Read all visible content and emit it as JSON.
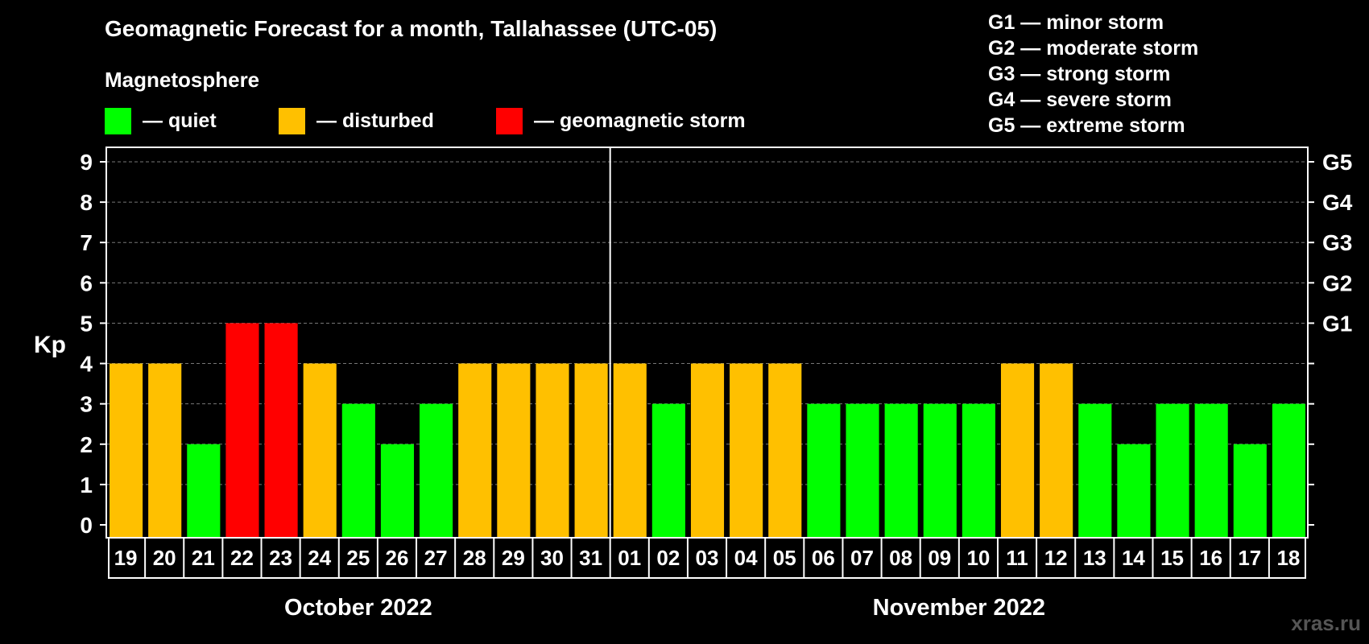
{
  "legend": {
    "heading": "Magnetosphere",
    "items": [
      {
        "label": "— quiet",
        "color": "#00ff00"
      },
      {
        "label": "— disturbed",
        "color": "#ffc000"
      },
      {
        "label": "— geomagnetic storm",
        "color": "#ff0000"
      }
    ]
  },
  "storm_levels": [
    "G1 — minor storm",
    "G2 — moderate storm",
    "G3 — strong storm",
    "G4 — severe storm",
    "G5 — extreme storm"
  ],
  "watermark": "xras.ru",
  "chart_data": {
    "type": "bar",
    "title": "Geomagnetic Forecast for a month, Tallahassee (UTC-05)",
    "ylabel": "Kp",
    "ylim": [
      0,
      9
    ],
    "yticks": [
      0,
      1,
      2,
      3,
      4,
      5,
      6,
      7,
      8,
      9
    ],
    "right_axis_labels": [
      {
        "kp": 5,
        "label": "G1"
      },
      {
        "kp": 6,
        "label": "G2"
      },
      {
        "kp": 7,
        "label": "G3"
      },
      {
        "kp": 8,
        "label": "G4"
      },
      {
        "kp": 9,
        "label": "G5"
      }
    ],
    "grid": true,
    "months": [
      {
        "label": "October 2022",
        "days": [
          "19",
          "20",
          "21",
          "22",
          "23",
          "24",
          "25",
          "26",
          "27",
          "28",
          "29",
          "30",
          "31"
        ]
      },
      {
        "label": "November 2022",
        "days": [
          "01",
          "02",
          "03",
          "04",
          "05",
          "06",
          "07",
          "08",
          "09",
          "10",
          "11",
          "12",
          "13",
          "14",
          "15",
          "16",
          "17",
          "18"
        ]
      }
    ],
    "categories": [
      "19",
      "20",
      "21",
      "22",
      "23",
      "24",
      "25",
      "26",
      "27",
      "28",
      "29",
      "30",
      "31",
      "01",
      "02",
      "03",
      "04",
      "05",
      "06",
      "07",
      "08",
      "09",
      "10",
      "11",
      "12",
      "13",
      "14",
      "15",
      "16",
      "17",
      "18"
    ],
    "values": [
      4,
      4,
      2,
      5,
      5,
      4,
      3,
      2,
      3,
      4,
      4,
      4,
      4,
      4,
      3,
      4,
      4,
      4,
      3,
      3,
      3,
      3,
      3,
      4,
      4,
      3,
      2,
      3,
      3,
      2,
      3
    ],
    "colors": {
      "quiet": "#00ff00",
      "disturbed": "#ffc000",
      "storm": "#ff0000"
    }
  }
}
